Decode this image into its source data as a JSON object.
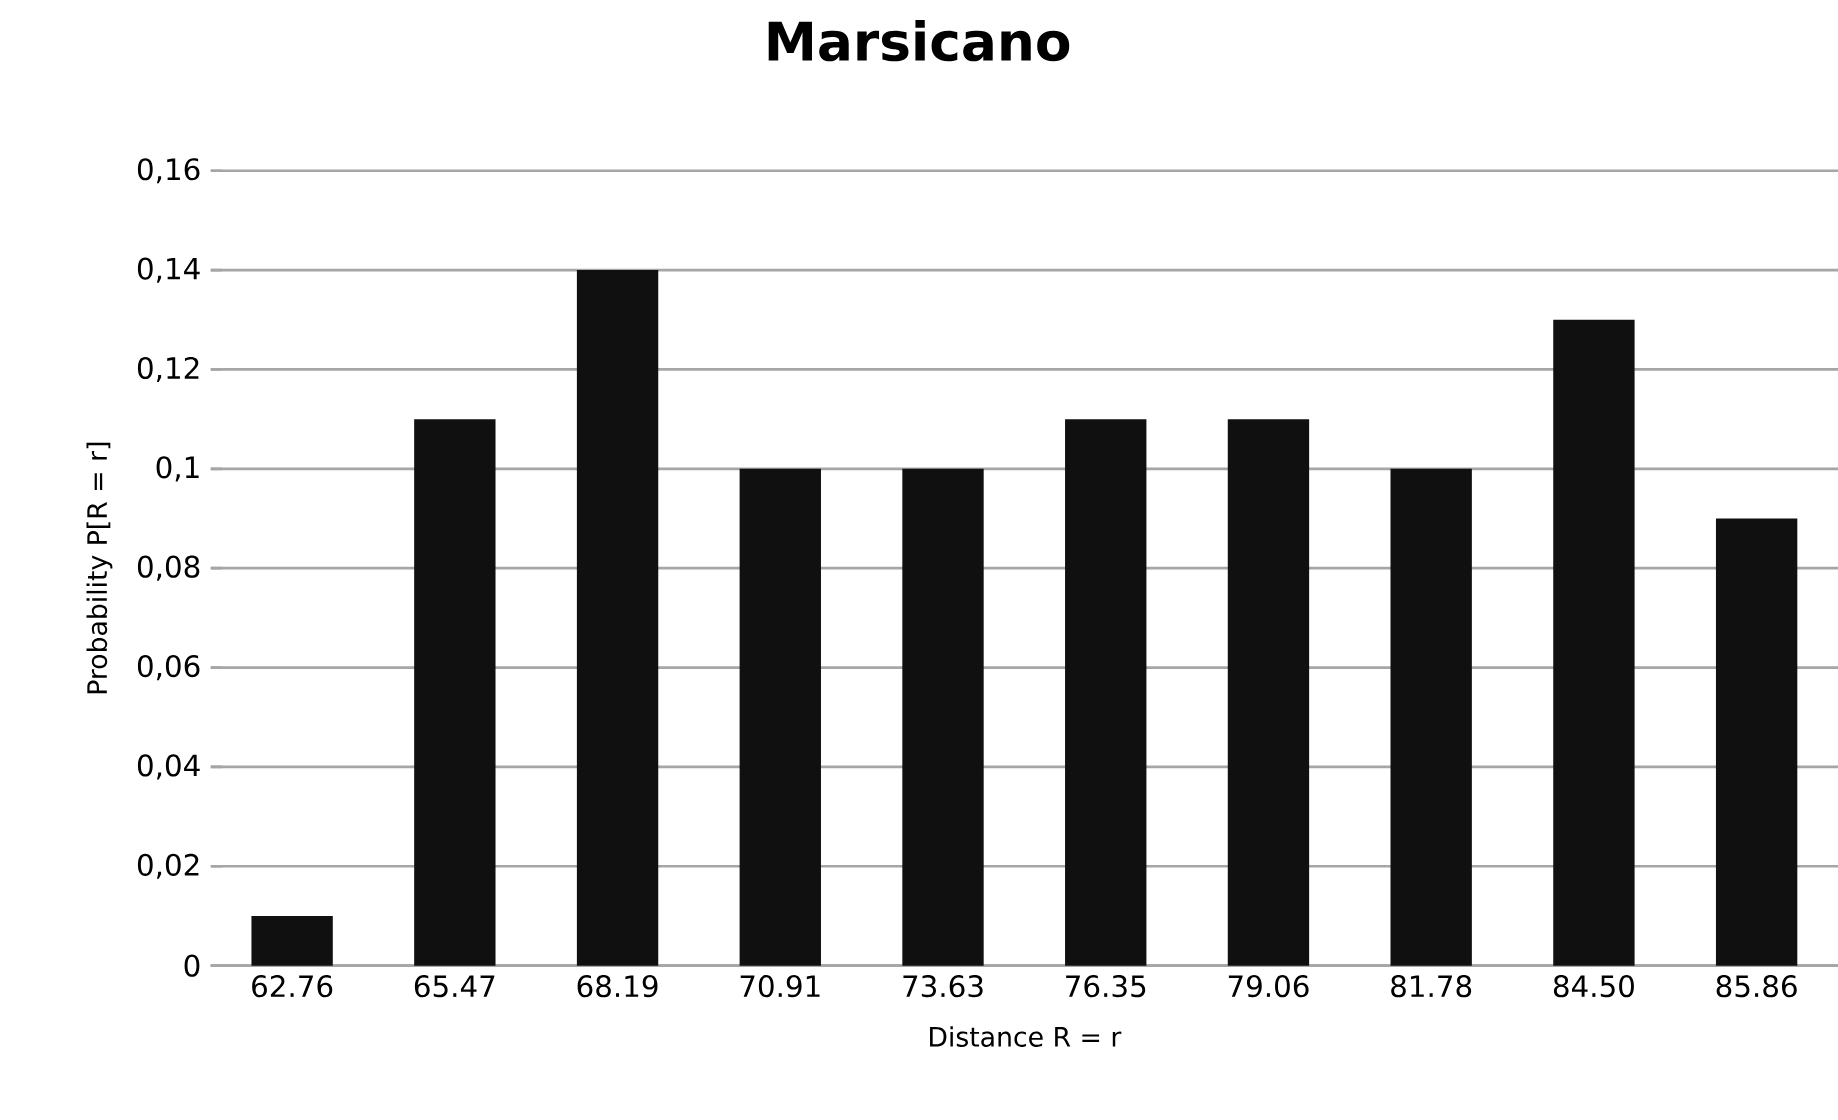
{
  "chart_data": {
    "type": "bar",
    "title": "Marsicano",
    "xlabel": "Distance R = r",
    "ylabel": "Probability P[R = r]",
    "categories": [
      "62.76",
      "65.47",
      "68.19",
      "70.91",
      "73.63",
      "76.35",
      "79.06",
      "81.78",
      "84.50",
      "85.86"
    ],
    "values": [
      0.01,
      0.11,
      0.14,
      0.1,
      0.1,
      0.11,
      0.11,
      0.1,
      0.13,
      0.09
    ],
    "color": "#101010",
    "ylim": [
      0,
      0.16
    ],
    "yticks": [
      {
        "value": 0,
        "label": "0"
      },
      {
        "value": 0.02,
        "label": "0,02"
      },
      {
        "value": 0.04,
        "label": "0,04"
      },
      {
        "value": 0.06,
        "label": "0,06"
      },
      {
        "value": 0.08,
        "label": "0,08"
      },
      {
        "value": 0.1,
        "label": "0,1"
      },
      {
        "value": 0.12,
        "label": "0,12"
      },
      {
        "value": 0.14,
        "label": "0,14"
      },
      {
        "value": 0.16,
        "label": "0,16"
      }
    ],
    "grid": "y"
  }
}
